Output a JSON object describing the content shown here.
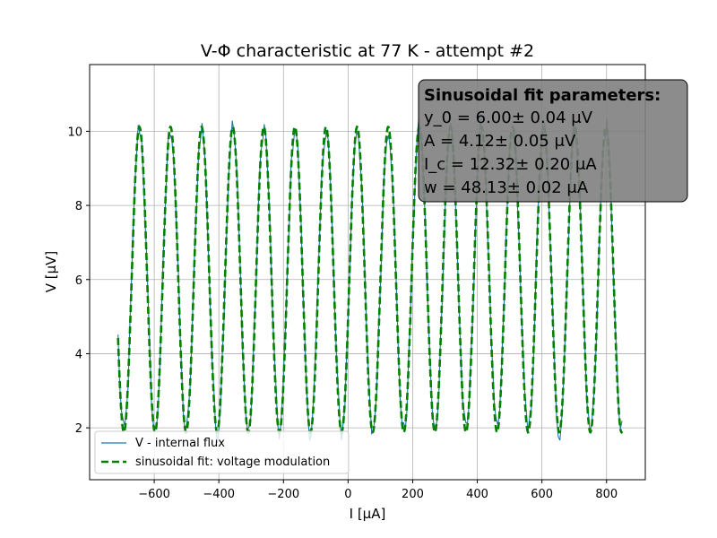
{
  "chart_data": {
    "type": "line",
    "title": "V-Φ characteristic at 77 K - attempt #2",
    "xlabel": "I [μA]",
    "ylabel": "V [μV]",
    "xlim": [
      -800,
      920
    ],
    "ylim": [
      0.6,
      11.8
    ],
    "xticks": [
      -600,
      -400,
      -200,
      0,
      200,
      400,
      600,
      800
    ],
    "yticks": [
      2,
      4,
      6,
      8,
      10
    ],
    "xtick_labels": [
      "−600",
      "−400",
      "−200",
      "0",
      "200",
      "400",
      "600",
      "800"
    ],
    "ytick_labels": [
      "2",
      "4",
      "6",
      "8",
      "10"
    ],
    "grid": true,
    "legend_position": "lower-left",
    "x_range": [
      -712,
      848
    ],
    "series": [
      {
        "name": "V - internal flux",
        "style": "solid",
        "color": "#1f77b4",
        "amplitude_uV": 4.12,
        "offset_uV": 6.0,
        "period_uA": 96.26,
        "phase_center_uA": 28,
        "noise_uV": 0.3
      },
      {
        "name": "sinusoidal fit: voltage modulation",
        "style": "dashed",
        "color": "#008000",
        "amplitude_uV": 4.12,
        "offset_uV": 6.0,
        "period_uA": 96.26,
        "phase_center_uA": 28
      }
    ],
    "annotation": {
      "title": "Sinusoidal fit parameters",
      "lines": [
        "y_0 = 6.00± 0.04 μV",
        "A = 4.12± 0.05 μV",
        "I_c = 12.32± 0.20 μA",
        "w = 48.13± 0.02 μA"
      ]
    }
  }
}
